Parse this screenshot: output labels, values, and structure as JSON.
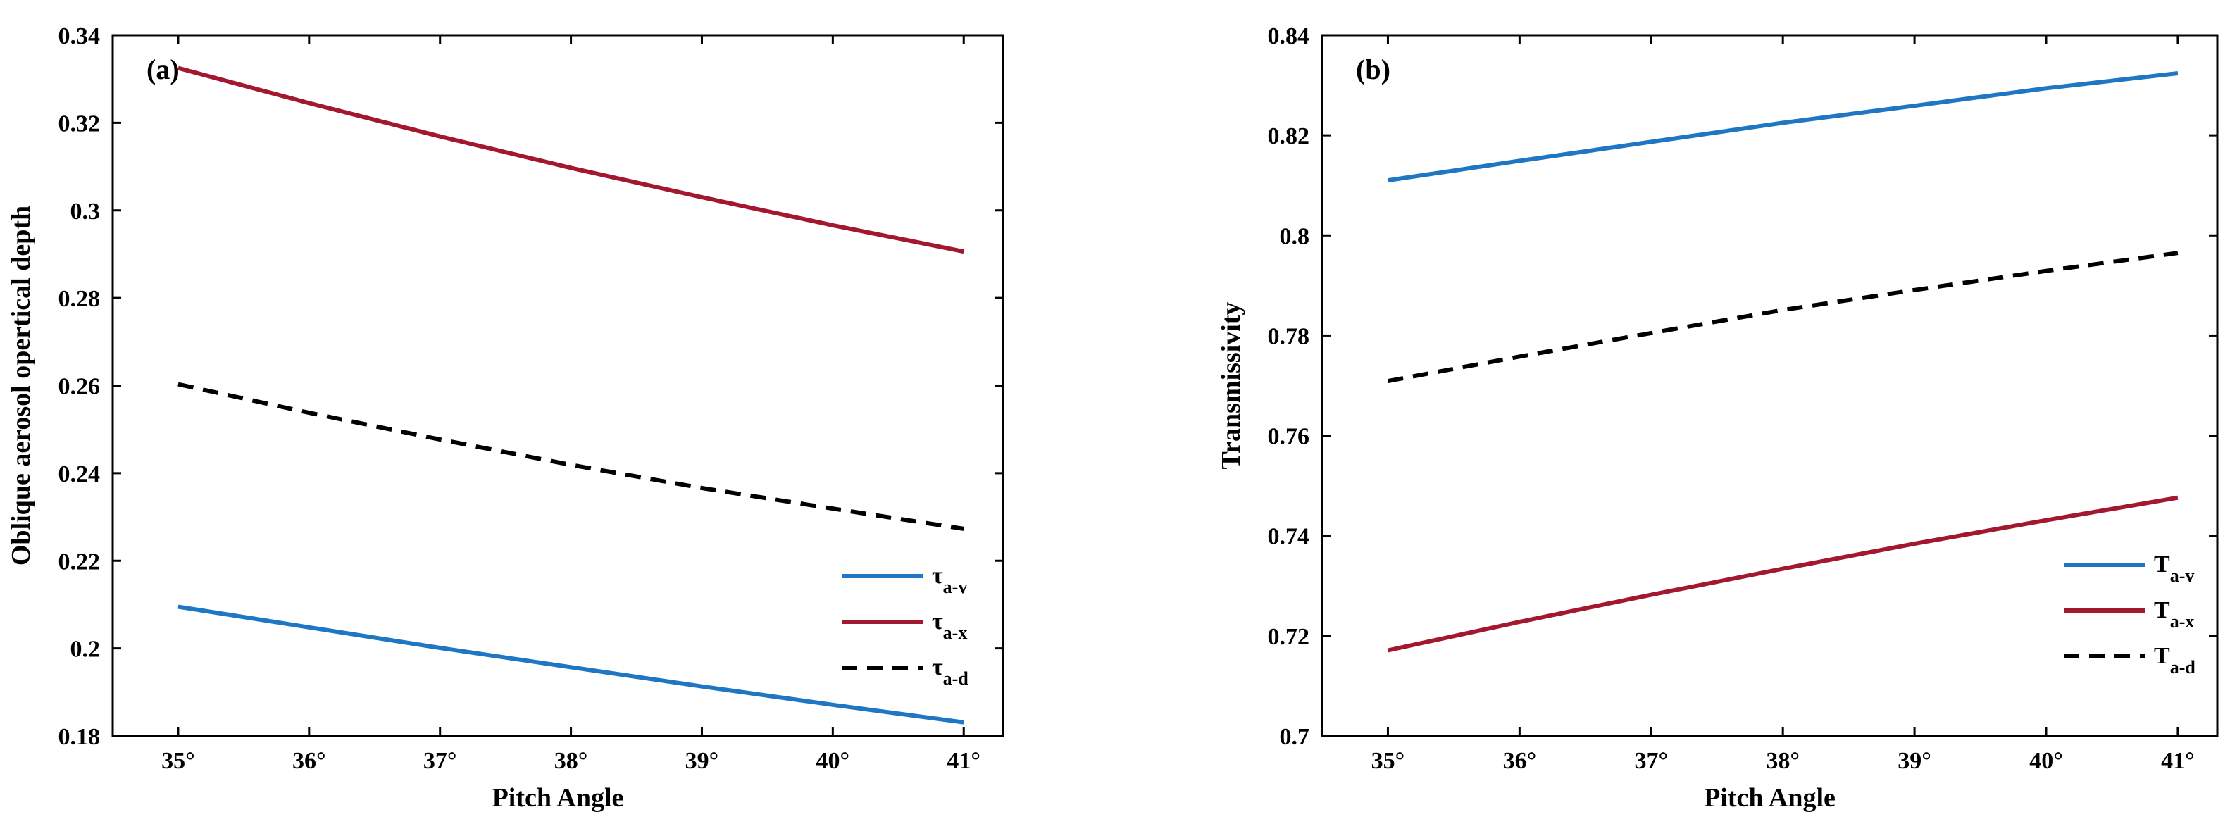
{
  "chart_data": [
    {
      "type": "line",
      "panel_label": "(a)",
      "xlabel": "Pitch Angle",
      "ylabel": "Oblique aerosol opertical depth",
      "x": [
        35,
        36,
        37,
        38,
        39,
        40,
        41
      ],
      "xtick_labels": [
        "35°",
        "36°",
        "37°",
        "38°",
        "39°",
        "40°",
        "41°"
      ],
      "xlim": [
        34.5,
        41.3
      ],
      "ylim": [
        0.18,
        0.34
      ],
      "yticks": [
        0.18,
        0.2,
        0.22,
        0.24,
        0.26,
        0.28,
        0.3,
        0.32,
        0.34
      ],
      "ytick_labels": [
        "0.18",
        "0.2",
        "0.22",
        "0.24",
        "0.26",
        "0.28",
        "0.3",
        "0.32",
        "0.34"
      ],
      "legend_position": "lower-right",
      "series": [
        {
          "name": "τa-v",
          "symbol": "τ",
          "subscript": "a-v",
          "color": "#1f77c4",
          "dash": "solid",
          "values": [
            0.2095,
            0.2048,
            0.2001,
            0.1957,
            0.1913,
            0.1871,
            0.1831
          ]
        },
        {
          "name": "τa-x",
          "symbol": "τ",
          "subscript": "a-x",
          "color": "#a3182e",
          "dash": "solid",
          "values": [
            0.3325,
            0.3245,
            0.3169,
            0.3097,
            0.303,
            0.2966,
            0.2906
          ]
        },
        {
          "name": "τa-d",
          "symbol": "τ",
          "subscript": "a-d",
          "color": "#000000",
          "dash": "dashed",
          "values": [
            0.2603,
            0.2538,
            0.2477,
            0.2419,
            0.2366,
            0.2319,
            0.2273
          ]
        }
      ]
    },
    {
      "type": "line",
      "panel_label": "(b)",
      "xlabel": "Pitch Angle",
      "ylabel": "Transmissivity",
      "x": [
        35,
        36,
        37,
        38,
        39,
        40,
        41
      ],
      "xtick_labels": [
        "35°",
        "36°",
        "37°",
        "38°",
        "39°",
        "40°",
        "41°"
      ],
      "xlim": [
        34.5,
        41.3
      ],
      "ylim": [
        0.7,
        0.84
      ],
      "yticks": [
        0.7,
        0.72,
        0.74,
        0.76,
        0.78,
        0.8,
        0.82,
        0.84
      ],
      "ytick_labels": [
        "0.7",
        "0.72",
        "0.74",
        "0.76",
        "0.78",
        "0.8",
        "0.82",
        "0.84"
      ],
      "legend_position": "lower-right",
      "series": [
        {
          "name": "Ta-v",
          "symbol": "T",
          "subscript": "a-v",
          "color": "#1f77c4",
          "dash": "solid",
          "values": [
            0.811,
            0.8149,
            0.8187,
            0.8225,
            0.8259,
            0.8294,
            0.8324
          ]
        },
        {
          "name": "Ta-x",
          "symbol": "T",
          "subscript": "a-x",
          "color": "#a3182e",
          "dash": "solid",
          "values": [
            0.7171,
            0.7228,
            0.7282,
            0.7334,
            0.7384,
            0.7431,
            0.7476
          ]
        },
        {
          "name": "Ta-d",
          "symbol": "T",
          "subscript": "a-d",
          "color": "#000000",
          "dash": "dashed",
          "values": [
            0.7709,
            0.7758,
            0.7805,
            0.7851,
            0.7891,
            0.7929,
            0.7965
          ]
        }
      ]
    }
  ]
}
